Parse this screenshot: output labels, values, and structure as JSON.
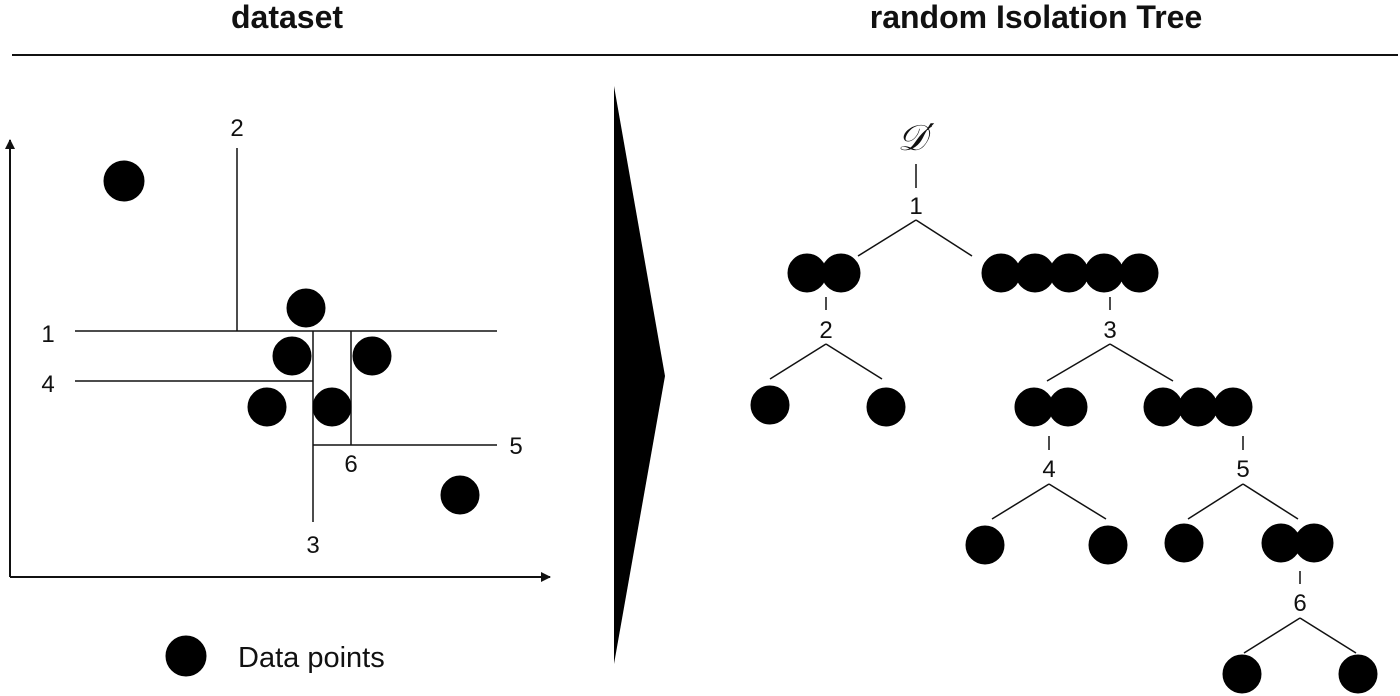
{
  "headers": {
    "left": "dataset",
    "right": "random Isolation Tree"
  },
  "legend": {
    "label": "Data points"
  },
  "split_labels": [
    "1",
    "2",
    "3",
    "4",
    "5",
    "6"
  ],
  "tree": {
    "root_label": "𝒟′"
  }
}
